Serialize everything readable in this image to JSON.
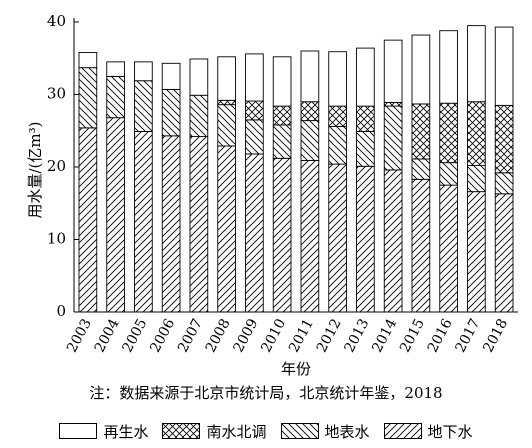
{
  "chart_data": {
    "type": "bar",
    "stacked": true,
    "categories": [
      "2003",
      "2004",
      "2005",
      "2006",
      "2007",
      "2008",
      "2009",
      "2010",
      "2011",
      "2012",
      "2013",
      "2014",
      "2015",
      "2016",
      "2017",
      "2018"
    ],
    "series": [
      {
        "name": "地下水",
        "pattern": "hatch-dense",
        "values": [
          25.4,
          26.8,
          24.9,
          24.3,
          24.2,
          22.9,
          21.8,
          21.2,
          20.9,
          20.4,
          20.1,
          19.6,
          18.3,
          17.5,
          16.6,
          16.3
        ]
      },
      {
        "name": "地表水",
        "pattern": "hatch-wide",
        "values": [
          8.3,
          5.7,
          7.0,
          6.4,
          5.7,
          5.7,
          4.7,
          4.6,
          5.5,
          5.2,
          4.8,
          8.8,
          2.8,
          3.1,
          3.6,
          2.9
        ]
      },
      {
        "name": "南水北调",
        "pattern": "crosshatch",
        "values": [
          0,
          0,
          0,
          0,
          0,
          0.6,
          2.6,
          2.6,
          2.6,
          2.8,
          3.5,
          0.5,
          7.6,
          8.2,
          8.8,
          9.3
        ]
      },
      {
        "name": "再生水",
        "pattern": "plain",
        "values": [
          2.1,
          2.0,
          2.6,
          3.6,
          5.0,
          6.0,
          6.5,
          6.8,
          7.0,
          7.5,
          8.0,
          8.6,
          9.5,
          10.0,
          10.5,
          10.8
        ]
      }
    ],
    "xlabel": "年份",
    "ylabel": "用水量/(亿m³)",
    "ylim": [
      0,
      40
    ],
    "yticks": [
      "0",
      "10",
      "20",
      "30",
      "40"
    ],
    "grid": false,
    "legend_position": "bottom"
  },
  "legend_order": [
    {
      "name": "再生水",
      "pattern": "plain"
    },
    {
      "name": "南水北调",
      "pattern": "crosshatch"
    },
    {
      "name": "地表水",
      "pattern": "hatch-wide"
    },
    {
      "name": "地下水",
      "pattern": "hatch-dense"
    }
  ],
  "note": "注：数据来源于北京市统计局，北京统计年鉴，2018"
}
